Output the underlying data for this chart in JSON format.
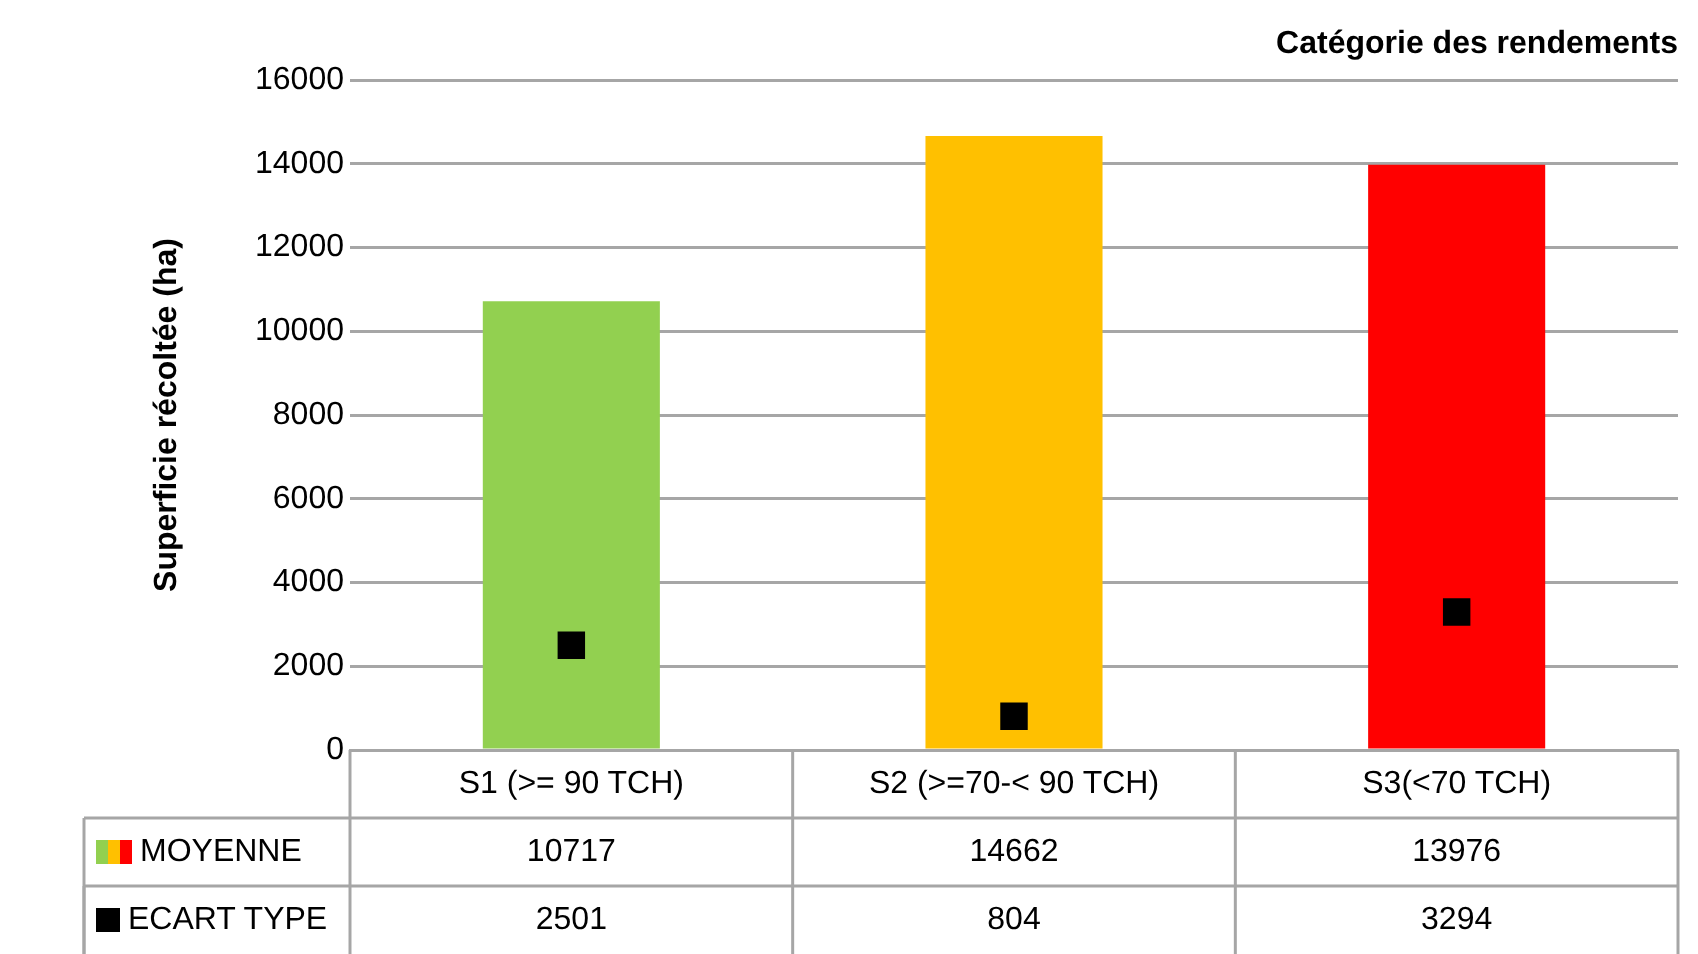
{
  "chart_data": {
    "type": "bar",
    "ylabel": "Superficie récoltée (ha)",
    "xlabel": "Catégorie des rendements",
    "categories": [
      "S1 (>= 90 TCH)",
      "S2 (>=70-< 90 TCH)",
      "S3(<70 TCH)"
    ],
    "series": [
      {
        "name": "MOYENNE",
        "colors": [
          "#92d050",
          "#ffc000",
          "#ff0000"
        ],
        "values": [
          10717,
          14662,
          13976
        ]
      },
      {
        "name": "ECART TYPE",
        "type": "scatter",
        "color": "#000000",
        "values": [
          2501,
          804,
          3294
        ]
      }
    ],
    "ylim": [
      0,
      16000
    ],
    "yticks": [
      0,
      2000,
      4000,
      6000,
      8000,
      10000,
      12000,
      14000,
      16000
    ],
    "grid": "y",
    "legend": "bottom",
    "data_labels": true,
    "marker": "square"
  }
}
